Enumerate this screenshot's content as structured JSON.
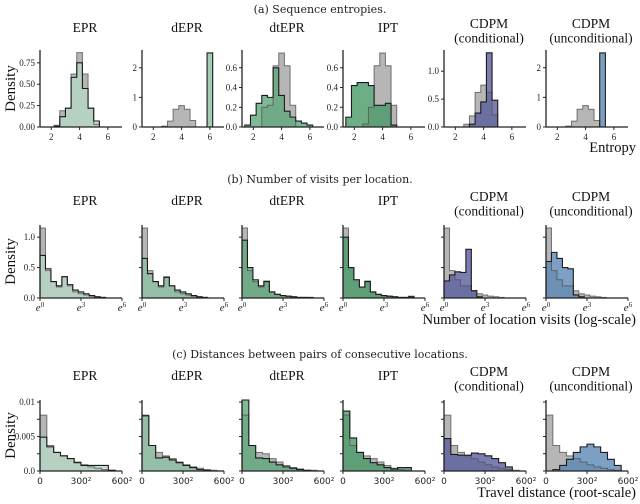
{
  "figure": {
    "rows": [
      {
        "caption": "(a) Sequence entropies.",
        "ylabel": "Density",
        "xlabel": "Entropy"
      },
      {
        "caption": "(b) Number of visits per location.",
        "ylabel": "Density",
        "xlabel": "Number of location visits (log-scale)"
      },
      {
        "caption": "(c) Distances between pairs of consecutive locations.",
        "ylabel": "Density",
        "xlabel": "Travel distance (root-scale)"
      }
    ],
    "panel_titles": [
      [
        "EPR"
      ],
      [
        "dEPR"
      ],
      [
        "dtEPR"
      ],
      [
        "IPT"
      ],
      [
        "CDPM",
        "(conditional)"
      ],
      [
        "CDPM",
        "(unconditional)"
      ]
    ]
  },
  "colors": {
    "real": "#a9a9a9",
    "EPR": "#b7d7c4",
    "dEPR": "#8cc1a1",
    "dtEPR": "#5fa77c",
    "IPT": "#4a9a68",
    "CDPM_conditional": "#5a5e9e",
    "CDPM_unconditional": "#5a88b4",
    "edge": "#222222"
  },
  "chart_data": [
    {
      "type": "histogram-grid-row",
      "title": "(a) Sequence entropies.",
      "xlabel": "Entropy",
      "ylabel": "Density",
      "xlim": [
        1.2,
        7
      ],
      "xticks": [
        2,
        4,
        6
      ],
      "xtick_labels": [
        "2",
        "4",
        "6"
      ],
      "panels": [
        {
          "name": "EPR",
          "ylim": [
            0,
            0.9
          ],
          "yticks": [
            0,
            0.25,
            0.5,
            0.75
          ],
          "ytick_labels": [
            "0.00",
            "0.25",
            "0.50",
            "0.75"
          ],
          "bin_edges": [
            2.2,
            2.6,
            3.0,
            3.4,
            3.8,
            4.2,
            4.6,
            5.0,
            5.4
          ],
          "real": [
            0.02,
            0.19,
            0.22,
            0.62,
            0.87,
            0.62,
            0.22,
            0.03
          ],
          "model": [
            0.01,
            0.12,
            0.22,
            0.58,
            0.75,
            0.45,
            0.22,
            0.07
          ],
          "model_color": "EPR"
        },
        {
          "name": "dEPR",
          "ylim": [
            0,
            2.6
          ],
          "yticks": [
            0,
            1,
            2
          ],
          "ytick_labels": [
            "0",
            "1",
            "2"
          ],
          "bin_edges": [
            2.6,
            3.0,
            3.4,
            3.8,
            4.2,
            4.6,
            5.0,
            5.4,
            5.8,
            6.2
          ],
          "real": [
            0.03,
            0.2,
            0.6,
            0.72,
            0.6,
            0.22,
            0.0,
            0.0,
            0.0
          ],
          "model": [
            0,
            0,
            0,
            0,
            0,
            0,
            0,
            0,
            2.5
          ],
          "model_color": "dEPR"
        },
        {
          "name": "dtEPR",
          "ylim": [
            0,
            0.78
          ],
          "yticks": [
            0,
            0.2,
            0.4,
            0.6
          ],
          "ytick_labels": [
            "0.0",
            "0.2",
            "0.4",
            "0.6"
          ],
          "bin_edges": [
            1.4,
            1.8,
            2.2,
            2.6,
            3.0,
            3.4,
            3.8,
            4.2,
            4.6,
            5.0,
            5.4,
            5.8,
            6.2
          ],
          "real": [
            0.0,
            0.0,
            0.0,
            0.2,
            0.22,
            0.62,
            0.75,
            0.62,
            0.22,
            0.0,
            0.0,
            0.0
          ],
          "model": [
            0.02,
            0.12,
            0.24,
            0.32,
            0.3,
            0.6,
            0.32,
            0.16,
            0.1,
            0.06,
            0.04,
            0.02
          ],
          "model_color": "dtEPR"
        },
        {
          "name": "IPT",
          "ylim": [
            0,
            0.78
          ],
          "yticks": [
            0,
            0.2,
            0.4,
            0.6
          ],
          "ytick_labels": [
            "0.0",
            "0.2",
            "0.4",
            "0.6"
          ],
          "bin_edges": [
            1.4,
            1.8,
            2.2,
            2.6,
            3.0,
            3.4,
            3.8,
            4.2,
            4.6,
            5.0
          ],
          "real": [
            0.0,
            0.0,
            0.0,
            0.03,
            0.2,
            0.62,
            0.75,
            0.62,
            0.22
          ],
          "model": [
            0.1,
            0.42,
            0.45,
            0.45,
            0.42,
            0.22,
            0.22,
            0.24,
            0.02
          ],
          "model_color": "IPT"
        },
        {
          "name": "CDPM (conditional)",
          "ylim": [
            0,
            1.38
          ],
          "yticks": [
            0,
            0.5,
            1.0
          ],
          "ytick_labels": [
            "0.0",
            "0.5",
            "1.0"
          ],
          "bin_edges": [
            2.6,
            3.0,
            3.4,
            3.8,
            4.2,
            4.6,
            5.0
          ],
          "real": [
            0.05,
            0.2,
            0.62,
            0.75,
            0.62,
            0.22
          ],
          "model": [
            0.0,
            0.05,
            0.25,
            0.45,
            1.33,
            0.48
          ],
          "model_color": "CDPM_conditional"
        },
        {
          "name": "CDPM (unconditional)",
          "ylim": [
            0,
            2.6
          ],
          "yticks": [
            0,
            1,
            2
          ],
          "ytick_labels": [
            "0",
            "1",
            "2"
          ],
          "bin_edges": [
            2.6,
            3.0,
            3.4,
            3.8,
            4.2,
            4.6,
            5.0,
            5.4
          ],
          "real": [
            0.03,
            0.2,
            0.6,
            0.72,
            0.6,
            0.22,
            0.0
          ],
          "model": [
            0,
            0,
            0,
            0,
            0,
            0,
            2.5
          ],
          "model_color": "CDPM_unconditional"
        }
      ]
    },
    {
      "type": "histogram-grid-row",
      "title": "(b) Number of visits per location.",
      "xlabel": "Number of location visits (log-scale)",
      "ylabel": "Density",
      "xlim": [
        0,
        6
      ],
      "xticks": [
        0,
        3,
        6
      ],
      "xtick_labels": [
        "e0",
        "e3",
        "e6"
      ],
      "ylim": [
        0,
        1.2
      ],
      "yticks": [
        0,
        0.5,
        1.0
      ],
      "ytick_labels": [
        "0.0",
        "0.5",
        "1.0"
      ],
      "bin_edges": [
        0,
        0.4,
        0.8,
        1.2,
        1.6,
        2.0,
        2.4,
        2.8,
        3.2,
        3.6,
        4.0,
        4.4,
        4.8,
        5.2,
        5.6
      ],
      "panels": [
        {
          "name": "EPR",
          "real": [
            1.15,
            0.45,
            0.27,
            0.18,
            0.35,
            0.2,
            0.1,
            0.07,
            0.05,
            0.03,
            0.02,
            0.01,
            0.0,
            0.0
          ],
          "model": [
            0.7,
            0.48,
            0.27,
            0.2,
            0.35,
            0.22,
            0.13,
            0.1,
            0.07,
            0.04,
            0.02,
            0.01,
            0.0,
            0.0
          ],
          "model_color": "EPR"
        },
        {
          "name": "dEPR",
          "real": [
            1.15,
            0.45,
            0.27,
            0.18,
            0.35,
            0.2,
            0.1,
            0.07,
            0.05,
            0.03,
            0.02,
            0.01,
            0.0,
            0.0
          ],
          "model": [
            0.65,
            0.4,
            0.27,
            0.2,
            0.34,
            0.2,
            0.13,
            0.1,
            0.07,
            0.04,
            0.02,
            0.01,
            0.0,
            0.0
          ],
          "model_color": "dEPR"
        },
        {
          "name": "dtEPR",
          "real": [
            1.15,
            0.45,
            0.27,
            0.18,
            0.28,
            0.1,
            0.06,
            0.04,
            0.03,
            0.02,
            0.01,
            0.01,
            0.0,
            0.0
          ],
          "model": [
            0.95,
            0.5,
            0.3,
            0.2,
            0.27,
            0.1,
            0.06,
            0.04,
            0.03,
            0.02,
            0.01,
            0.01,
            0.01,
            0.0
          ],
          "model_color": "dtEPR"
        },
        {
          "name": "IPT",
          "real": [
            1.15,
            0.5,
            0.3,
            0.18,
            0.28,
            0.1,
            0.06,
            0.04,
            0.03,
            0.02,
            0.01,
            0.01,
            0.03,
            0.0
          ],
          "model": [
            1.0,
            0.5,
            0.3,
            0.18,
            0.27,
            0.1,
            0.06,
            0.04,
            0.03,
            0.02,
            0.01,
            0.01,
            0.02,
            0.0
          ],
          "model_color": "IPT"
        },
        {
          "name": "CDPM (conditional)",
          "real": [
            1.15,
            0.45,
            0.3,
            0.2,
            0.2,
            0.12,
            0.07,
            0.05,
            0.03,
            0.02,
            0.01,
            0.0,
            0.0,
            0.0
          ],
          "model": [
            0.28,
            0.38,
            0.43,
            0.42,
            0.8,
            0.12,
            0.02,
            0.0,
            0.0,
            0.0,
            0.0,
            0.0,
            0.0,
            0.0
          ],
          "model_color": "CDPM_conditional"
        },
        {
          "name": "CDPM (unconditional)",
          "real": [
            1.15,
            0.45,
            0.3,
            0.2,
            0.2,
            0.12,
            0.07,
            0.05,
            0.03,
            0.02,
            0.01,
            0.0,
            0.0,
            0.0
          ],
          "model": [
            0.6,
            0.75,
            0.65,
            0.5,
            0.48,
            0.05,
            0.02,
            0.0,
            0.0,
            0.0,
            0.0,
            0.0,
            0.0,
            0.0
          ],
          "model_color": "CDPM_unconditional"
        }
      ]
    },
    {
      "type": "histogram-grid-row",
      "title": "(c) Distances between pairs of consecutive locations.",
      "xlabel": "Travel distance (root-scale)",
      "ylabel": "Density",
      "xlim": [
        0,
        600
      ],
      "xticks": [
        0,
        300,
        600
      ],
      "xtick_labels": [
        "0",
        "300²",
        "600²"
      ],
      "ylim": [
        0,
        0.0103
      ],
      "yticks": [
        0,
        0.0025,
        0.005,
        0.0075,
        0.01
      ],
      "ytick_labels": [
        "0.0",
        "",
        "0.005",
        "",
        "0.01"
      ],
      "bin_edges": [
        0,
        50,
        100,
        150,
        200,
        250,
        300,
        350,
        400,
        450,
        500,
        550
      ],
      "panels": [
        {
          "name": "EPR",
          "real": [
            0.0081,
            0.0037,
            0.0027,
            0.0022,
            0.0018,
            0.0013,
            0.0009,
            0.0006,
            0.0004,
            0.0002,
            0.0001
          ],
          "model": [
            0.0049,
            0.0035,
            0.0027,
            0.0022,
            0.0018,
            0.0012,
            0.0008,
            0.0008,
            0.0008,
            0.0008,
            0.0001
          ],
          "model_color": "EPR"
        },
        {
          "name": "dEPR",
          "real": [
            0.0081,
            0.0037,
            0.0027,
            0.0022,
            0.0018,
            0.0013,
            0.0009,
            0.0006,
            0.0004,
            0.0002,
            0.0001
          ],
          "model": [
            0.008,
            0.0037,
            0.0019,
            0.002,
            0.0016,
            0.0012,
            0.0008,
            0.0005,
            0.0002,
            0.0001,
            0.0
          ],
          "model_color": "dEPR"
        },
        {
          "name": "dtEPR",
          "real": [
            0.0081,
            0.0037,
            0.0027,
            0.0025,
            0.0018,
            0.0013,
            0.0008,
            0.0005,
            0.0003,
            0.0001,
            0.0001
          ],
          "model": [
            0.0103,
            0.0037,
            0.0019,
            0.0018,
            0.0013,
            0.0009,
            0.0006,
            0.0004,
            0.0002,
            0.0001,
            0.0
          ],
          "model_color": "dtEPR"
        },
        {
          "name": "IPT",
          "real": [
            0.0081,
            0.0037,
            0.0027,
            0.0022,
            0.0018,
            0.0013,
            0.0008,
            0.0004,
            0.0002,
            0.0001,
            0.0
          ],
          "model": [
            0.0087,
            0.0048,
            0.0027,
            0.0018,
            0.0012,
            0.0009,
            0.0005,
            0.0003,
            0.0005,
            0.0005,
            0.0
          ],
          "model_color": "IPT"
        },
        {
          "name": "CDPM (conditional)",
          "real": [
            0.0081,
            0.0037,
            0.0027,
            0.0022,
            0.0018,
            0.0013,
            0.0009,
            0.0006,
            0.0004,
            0.0002,
            0.0001
          ],
          "model": [
            0.0047,
            0.0024,
            0.0023,
            0.0023,
            0.0026,
            0.0025,
            0.0022,
            0.0018,
            0.0012,
            0.0006,
            0.0
          ],
          "model_color": "CDPM_conditional"
        },
        {
          "name": "CDPM (unconditional)",
          "real": [
            0.0081,
            0.0037,
            0.0027,
            0.0022,
            0.0018,
            0.0013,
            0.0009,
            0.0006,
            0.0004,
            0.0002,
            0.0001
          ],
          "model": [
            0.0,
            0.0002,
            0.0008,
            0.0017,
            0.0027,
            0.0035,
            0.0039,
            0.0035,
            0.0027,
            0.0017,
            0.0008
          ],
          "model_color": "CDPM_unconditional"
        }
      ]
    }
  ]
}
